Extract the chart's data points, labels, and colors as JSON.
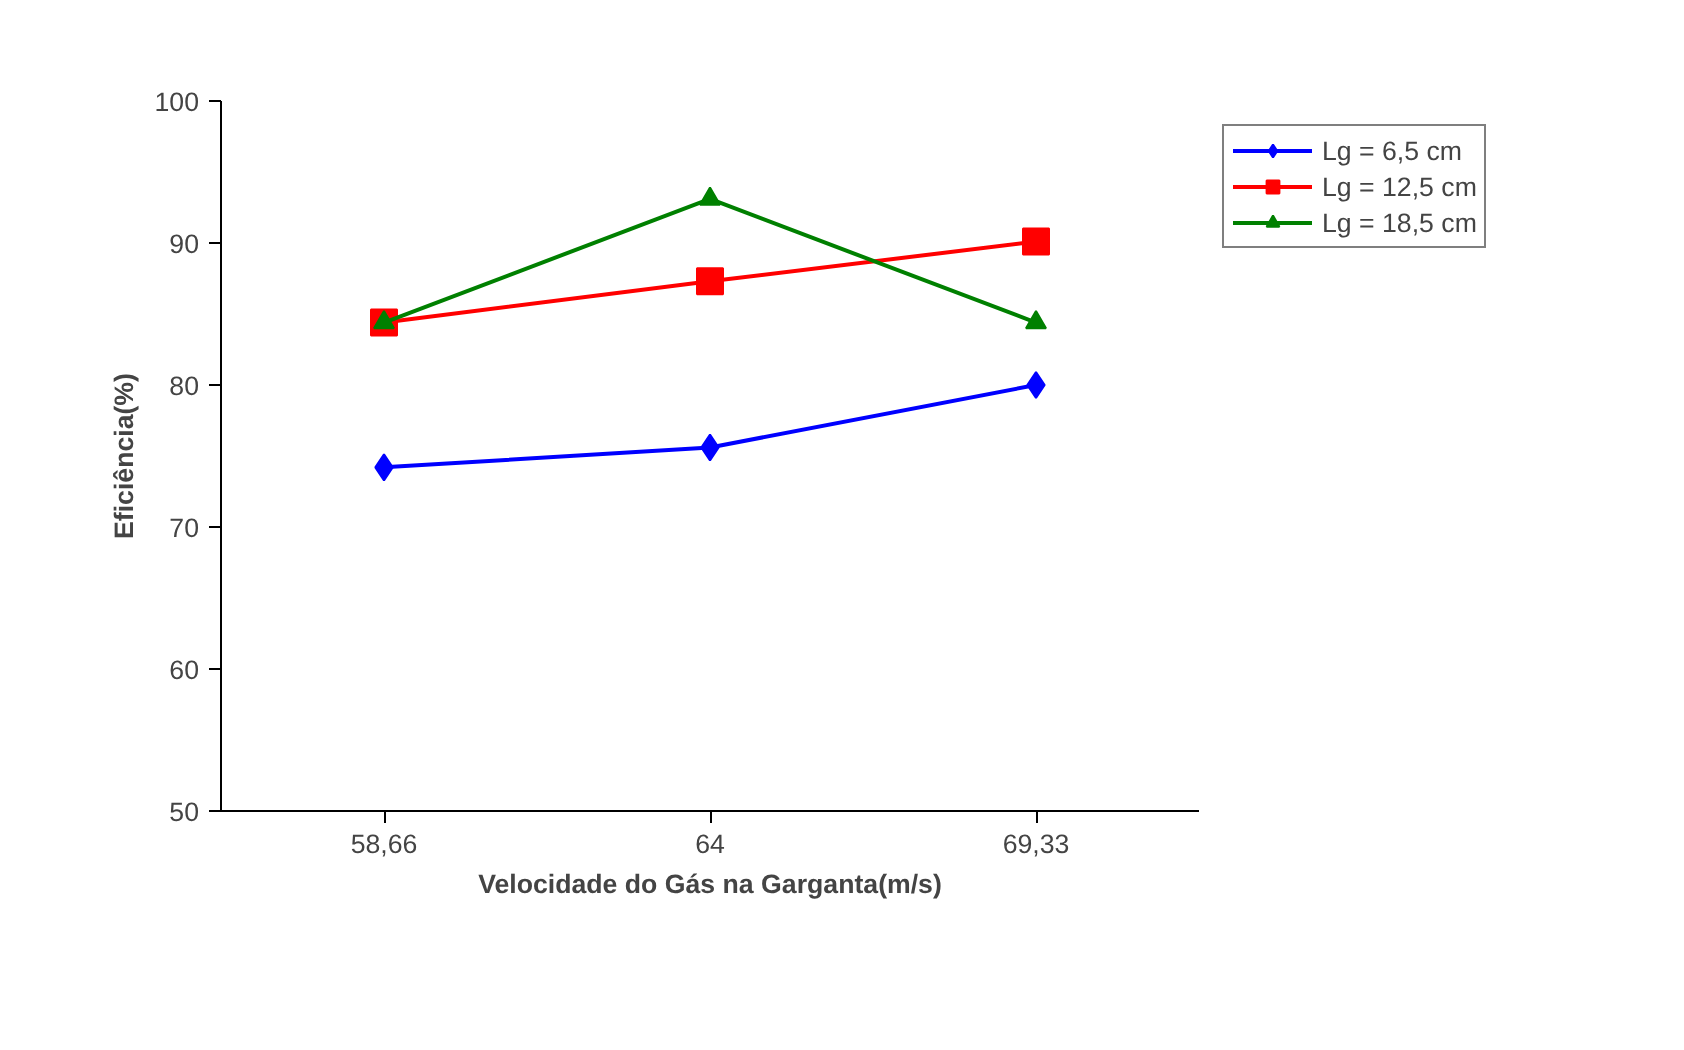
{
  "chart_data": {
    "type": "line",
    "xlabel": "Velocidade do Gás na Garganta(m/s)",
    "ylabel": "Eficiência(%)",
    "categories": [
      "58,66",
      "64",
      "69,33"
    ],
    "series": [
      {
        "name": "Lg = 6,5 cm",
        "color": "#0000ff",
        "marker": "diamond",
        "values": [
          74.2,
          75.6,
          80.0
        ]
      },
      {
        "name": "Lg = 12,5 cm",
        "color": "#ff0000",
        "marker": "square",
        "values": [
          84.4,
          87.3,
          90.1
        ]
      },
      {
        "name": "Lg = 18,5 cm",
        "color": "#008000",
        "marker": "triangle",
        "values": [
          84.4,
          93.1,
          84.4
        ]
      }
    ],
    "ylim": [
      50,
      100
    ],
    "yticks": [
      50,
      60,
      70,
      80,
      90,
      100
    ],
    "grid": false,
    "legend": "right"
  }
}
